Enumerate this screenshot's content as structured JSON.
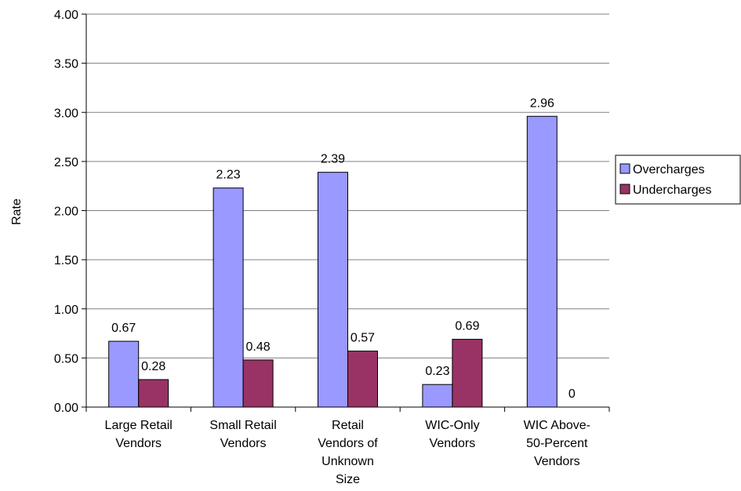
{
  "chart_data": {
    "type": "bar",
    "title": "",
    "xlabel": "",
    "ylabel": "Rate",
    "ylim": [
      0,
      4
    ],
    "y_ticks": [
      "0.00",
      "0.50",
      "1.00",
      "1.50",
      "2.00",
      "2.50",
      "3.00",
      "3.50",
      "4.00"
    ],
    "grid": true,
    "legend_position": "right",
    "categories": [
      [
        "Large Retail",
        "Vendors"
      ],
      [
        "Small Retail",
        "Vendors"
      ],
      [
        "Retail",
        "Vendors of",
        "Unknown",
        "Size"
      ],
      [
        "WIC-Only",
        "Vendors"
      ],
      [
        "WIC Above-",
        "50-Percent",
        "Vendors"
      ]
    ],
    "series": [
      {
        "name": "Overcharges",
        "color": "#9999FF",
        "values": [
          0.67,
          2.23,
          2.39,
          0.23,
          2.96
        ],
        "labels": [
          "0.67",
          "2.23",
          "2.39",
          "0.23",
          "2.96"
        ]
      },
      {
        "name": "Undercharges",
        "color": "#993366",
        "values": [
          0.28,
          0.48,
          0.57,
          0.69,
          0
        ],
        "labels": [
          "0.28",
          "0.48",
          "0.57",
          "0.69",
          "0"
        ]
      }
    ]
  }
}
